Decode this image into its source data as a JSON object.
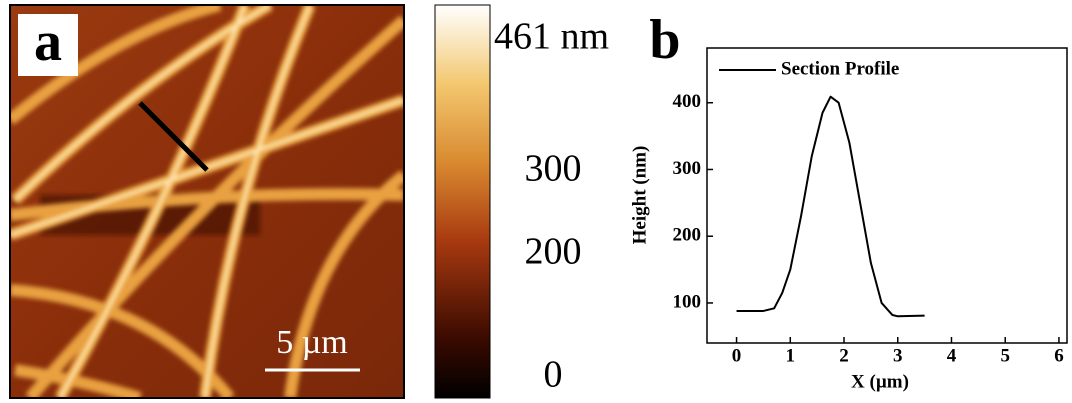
{
  "panel_a": {
    "label": "a",
    "scale_bar": "5 µm",
    "colorbar_labels": [
      "461 nm",
      "300",
      "200",
      "0"
    ]
  },
  "chart_data": {
    "type": "line",
    "label": "b",
    "x_label": "X (µm)",
    "y_label": "Height (nm)",
    "x": [
      0,
      0.3,
      0.5,
      0.7,
      0.85,
      1.0,
      1.2,
      1.4,
      1.6,
      1.75,
      1.9,
      2.1,
      2.3,
      2.5,
      2.7,
      2.9,
      3.0,
      3.5
    ],
    "series": [
      {
        "name": "Section Profile",
        "color": "#000000",
        "values": [
          88,
          88,
          88,
          92,
          115,
          150,
          230,
          320,
          385,
          409,
          400,
          340,
          250,
          160,
          100,
          82,
          80,
          81
        ]
      }
    ],
    "xlim": [
      -0.55,
      6.15
    ],
    "xticks": [
      0,
      1,
      2,
      3,
      4,
      5,
      6
    ],
    "ylim": [
      40,
      482
    ],
    "yticks": [
      100,
      200,
      300,
      400
    ],
    "legend": "upper left"
  }
}
